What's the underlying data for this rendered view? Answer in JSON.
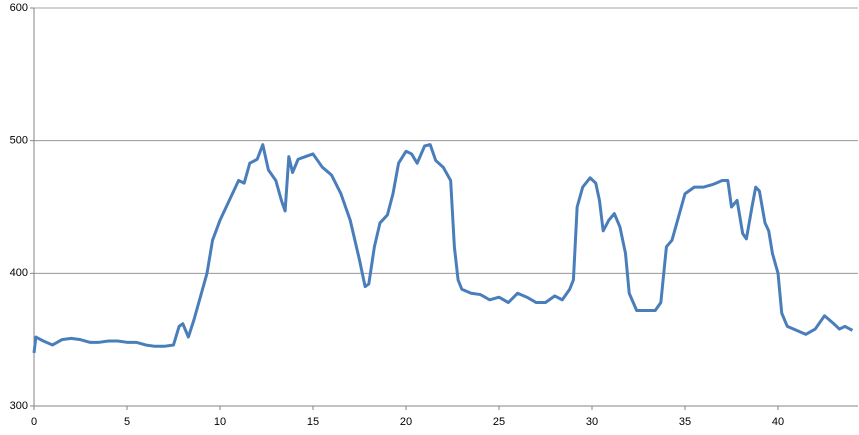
{
  "chart_data": {
    "type": "line",
    "x": [
      0,
      0.1,
      0.5,
      1,
      1.5,
      2,
      2.5,
      3,
      3.5,
      4,
      4.5,
      5,
      5.5,
      6,
      6.5,
      7,
      7.5,
      7.8,
      8,
      8.3,
      8.6,
      9,
      9.3,
      9.6,
      10,
      10.5,
      11,
      11.3,
      11.6,
      12,
      12.3,
      12.6,
      13,
      13.3,
      13.5,
      13.7,
      13.9,
      14.2,
      14.6,
      15,
      15.5,
      16,
      16.5,
      17,
      17.5,
      17.8,
      18,
      18.3,
      18.6,
      19,
      19.3,
      19.6,
      20,
      20.3,
      20.6,
      21,
      21.3,
      21.6,
      22,
      22.4,
      22.6,
      22.8,
      23,
      23.5,
      24,
      24.5,
      25,
      25.5,
      26,
      26.5,
      27,
      27.5,
      28,
      28.4,
      28.8,
      29,
      29.2,
      29.5,
      29.9,
      30.2,
      30.4,
      30.6,
      30.9,
      31.2,
      31.5,
      31.8,
      32,
      32.4,
      33,
      33.4,
      33.7,
      34,
      34.3,
      34.6,
      35,
      35.5,
      36,
      36.5,
      37,
      37.3,
      37.5,
      37.8,
      38.1,
      38.3,
      38.6,
      38.8,
      39,
      39.3,
      39.5,
      39.7,
      40,
      40.2,
      40.5,
      41,
      41.5,
      42,
      42.5,
      43,
      43.3,
      43.6,
      44
    ],
    "series": [
      {
        "color": "#4a7ebb",
        "values": [
          340,
          352,
          349,
          346,
          350,
          351,
          350,
          348,
          348,
          349,
          349,
          348,
          348,
          346,
          345,
          345,
          346,
          360,
          362,
          352,
          365,
          385,
          400,
          425,
          440,
          455,
          470,
          468,
          483,
          486,
          497,
          478,
          470,
          455,
          447,
          488,
          476,
          486,
          488,
          490,
          480,
          474,
          460,
          440,
          410,
          390,
          392,
          420,
          438,
          444,
          460,
          483,
          492,
          490,
          483,
          496,
          497,
          485,
          480,
          470,
          420,
          395,
          388,
          385,
          384,
          380,
          382,
          378,
          385,
          382,
          378,
          378,
          383,
          380,
          388,
          395,
          450,
          465,
          472,
          468,
          455,
          432,
          440,
          445,
          435,
          415,
          385,
          372,
          372,
          372,
          378,
          420,
          425,
          440,
          460,
          465,
          465,
          467,
          470,
          470,
          450,
          455,
          430,
          426,
          450,
          465,
          462,
          438,
          432,
          415,
          400,
          370,
          360,
          357,
          354,
          358,
          368,
          362,
          358,
          360,
          357
        ]
      }
    ],
    "xlim": [
      0,
      44.3
    ],
    "xticks": [
      0,
      5,
      10,
      15,
      20,
      25,
      30,
      35,
      40
    ],
    "ylim": [
      300,
      600
    ],
    "yticks": [
      300,
      400,
      500,
      600
    ],
    "grid": true
  }
}
